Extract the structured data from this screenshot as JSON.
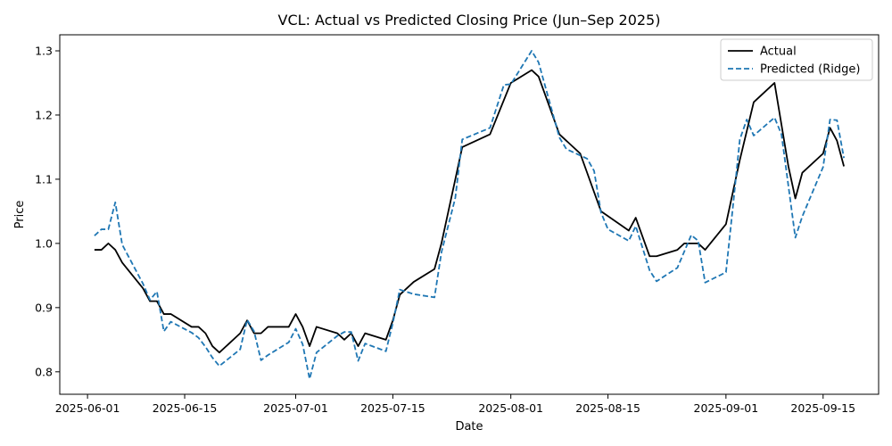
{
  "chart_data": {
    "type": "line",
    "title": "VCL: Actual vs Predicted Closing Price (Jun–Sep 2025)",
    "xlabel": "Date",
    "ylabel": "Price",
    "xlim": [
      "2025-05-28",
      "2025-09-23"
    ],
    "ylim": [
      0.765,
      1.325
    ],
    "x_ticks": [
      "2025-06-01",
      "2025-06-15",
      "2025-07-01",
      "2025-07-15",
      "2025-08-01",
      "2025-08-15",
      "2025-09-01",
      "2025-09-15"
    ],
    "y_ticks": [
      0.8,
      0.9,
      1.0,
      1.1,
      1.2,
      1.3
    ],
    "y_tick_labels": [
      "0.8",
      "0.9",
      "1.0",
      "1.1",
      "1.2",
      "1.3"
    ],
    "grid": false,
    "legend_position": "top-right",
    "series": [
      {
        "name": "Actual",
        "color": "#000000",
        "style": "solid",
        "points": [
          [
            "2025-06-02",
            0.99
          ],
          [
            "2025-06-03",
            0.99
          ],
          [
            "2025-06-04",
            1.0
          ],
          [
            "2025-06-05",
            0.99
          ],
          [
            "2025-06-06",
            0.97
          ],
          [
            "2025-06-09",
            0.93
          ],
          [
            "2025-06-10",
            0.91
          ],
          [
            "2025-06-11",
            0.91
          ],
          [
            "2025-06-12",
            0.89
          ],
          [
            "2025-06-13",
            0.89
          ],
          [
            "2025-06-16",
            0.87
          ],
          [
            "2025-06-17",
            0.87
          ],
          [
            "2025-06-18",
            0.86
          ],
          [
            "2025-06-19",
            0.84
          ],
          [
            "2025-06-20",
            0.83
          ],
          [
            "2025-06-23",
            0.86
          ],
          [
            "2025-06-24",
            0.88
          ],
          [
            "2025-06-25",
            0.86
          ],
          [
            "2025-06-26",
            0.86
          ],
          [
            "2025-06-27",
            0.87
          ],
          [
            "2025-06-30",
            0.87
          ],
          [
            "2025-07-01",
            0.89
          ],
          [
            "2025-07-02",
            0.87
          ],
          [
            "2025-07-03",
            0.84
          ],
          [
            "2025-07-04",
            0.87
          ],
          [
            "2025-07-07",
            0.86
          ],
          [
            "2025-07-08",
            0.85
          ],
          [
            "2025-07-09",
            0.86
          ],
          [
            "2025-07-10",
            0.84
          ],
          [
            "2025-07-11",
            0.86
          ],
          [
            "2025-07-14",
            0.85
          ],
          [
            "2025-07-15",
            0.88
          ],
          [
            "2025-07-16",
            0.92
          ],
          [
            "2025-07-18",
            0.94
          ],
          [
            "2025-07-21",
            0.96
          ],
          [
            "2025-07-22",
            1.0
          ],
          [
            "2025-07-25",
            1.15
          ],
          [
            "2025-07-29",
            1.17
          ],
          [
            "2025-08-01",
            1.25
          ],
          [
            "2025-08-04",
            1.27
          ],
          [
            "2025-08-05",
            1.26
          ],
          [
            "2025-08-08",
            1.17
          ],
          [
            "2025-08-11",
            1.14
          ],
          [
            "2025-08-14",
            1.05
          ],
          [
            "2025-08-18",
            1.02
          ],
          [
            "2025-08-19",
            1.04
          ],
          [
            "2025-08-21",
            0.98
          ],
          [
            "2025-08-22",
            0.98
          ],
          [
            "2025-08-25",
            0.99
          ],
          [
            "2025-08-26",
            1.0
          ],
          [
            "2025-08-28",
            1.0
          ],
          [
            "2025-08-29",
            0.99
          ],
          [
            "2025-09-01",
            1.03
          ],
          [
            "2025-09-02",
            1.08
          ],
          [
            "2025-09-03",
            1.13
          ],
          [
            "2025-09-05",
            1.22
          ],
          [
            "2025-09-08",
            1.25
          ],
          [
            "2025-09-10",
            1.12
          ],
          [
            "2025-09-11",
            1.07
          ],
          [
            "2025-09-12",
            1.11
          ],
          [
            "2025-09-15",
            1.14
          ],
          [
            "2025-09-16",
            1.18
          ],
          [
            "2025-09-17",
            1.16
          ],
          [
            "2025-09-18",
            1.12
          ]
        ]
      },
      {
        "name": "Predicted (Ridge)",
        "color": "#1f77b4",
        "style": "dashed",
        "points": [
          [
            "2025-06-02",
            1.012
          ],
          [
            "2025-06-03",
            1.022
          ],
          [
            "2025-06-04",
            1.022
          ],
          [
            "2025-06-05",
            1.064
          ],
          [
            "2025-06-06",
            0.998
          ],
          [
            "2025-06-09",
            0.937
          ],
          [
            "2025-06-10",
            0.912
          ],
          [
            "2025-06-11",
            0.925
          ],
          [
            "2025-06-12",
            0.863
          ],
          [
            "2025-06-13",
            0.878
          ],
          [
            "2025-06-16",
            0.861
          ],
          [
            "2025-06-17",
            0.853
          ],
          [
            "2025-06-18",
            0.839
          ],
          [
            "2025-06-19",
            0.822
          ],
          [
            "2025-06-20",
            0.809
          ],
          [
            "2025-06-23",
            0.835
          ],
          [
            "2025-06-24",
            0.881
          ],
          [
            "2025-06-25",
            0.863
          ],
          [
            "2025-06-26",
            0.818
          ],
          [
            "2025-06-27",
            0.826
          ],
          [
            "2025-06-30",
            0.846
          ],
          [
            "2025-07-01",
            0.867
          ],
          [
            "2025-07-02",
            0.843
          ],
          [
            "2025-07-03",
            0.789
          ],
          [
            "2025-07-04",
            0.83
          ],
          [
            "2025-07-07",
            0.856
          ],
          [
            "2025-07-08",
            0.862
          ],
          [
            "2025-07-09",
            0.862
          ],
          [
            "2025-07-10",
            0.817
          ],
          [
            "2025-07-11",
            0.844
          ],
          [
            "2025-07-14",
            0.832
          ],
          [
            "2025-07-15",
            0.876
          ],
          [
            "2025-07-16",
            0.928
          ],
          [
            "2025-07-18",
            0.921
          ],
          [
            "2025-07-21",
            0.916
          ],
          [
            "2025-07-22",
            0.986
          ],
          [
            "2025-07-24",
            1.071
          ],
          [
            "2025-07-25",
            1.162
          ],
          [
            "2025-07-29",
            1.18
          ],
          [
            "2025-07-31",
            1.247
          ],
          [
            "2025-08-01",
            1.248
          ],
          [
            "2025-08-04",
            1.3
          ],
          [
            "2025-08-05",
            1.282
          ],
          [
            "2025-08-08",
            1.165
          ],
          [
            "2025-08-09",
            1.147
          ],
          [
            "2025-08-12",
            1.132
          ],
          [
            "2025-08-13",
            1.113
          ],
          [
            "2025-08-14",
            1.048
          ],
          [
            "2025-08-15",
            1.022
          ],
          [
            "2025-08-18",
            1.004
          ],
          [
            "2025-08-19",
            1.027
          ],
          [
            "2025-08-21",
            0.958
          ],
          [
            "2025-08-22",
            0.941
          ],
          [
            "2025-08-25",
            0.962
          ],
          [
            "2025-08-27",
            1.013
          ],
          [
            "2025-08-28",
            1.004
          ],
          [
            "2025-08-29",
            0.939
          ],
          [
            "2025-09-01",
            0.955
          ],
          [
            "2025-09-02",
            1.057
          ],
          [
            "2025-09-03",
            1.162
          ],
          [
            "2025-09-04",
            1.193
          ],
          [
            "2025-09-05",
            1.168
          ],
          [
            "2025-09-08",
            1.196
          ],
          [
            "2025-09-09",
            1.17
          ],
          [
            "2025-09-11",
            1.009
          ],
          [
            "2025-09-12",
            1.042
          ],
          [
            "2025-09-15",
            1.119
          ],
          [
            "2025-09-16",
            1.193
          ],
          [
            "2025-09-17",
            1.192
          ],
          [
            "2025-09-18",
            1.133
          ]
        ]
      }
    ]
  }
}
